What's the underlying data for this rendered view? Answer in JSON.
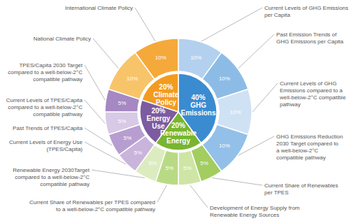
{
  "chart_data": {
    "type": "pie",
    "data_labels": true,
    "rings": [
      {
        "categories": [
          "GHG Emissions",
          "Renewable Energy",
          "Energy Use",
          "Climate Policy"
        ],
        "values": [
          40,
          20,
          20,
          20
        ],
        "value_labels": [
          "40%",
          "20%",
          "20%",
          "20%"
        ],
        "colors": [
          "#3b8bd0",
          "#79b530",
          "#7d5ba0",
          "#f29c1f"
        ]
      },
      {
        "categories": [
          "Current Levels of GHG Emissions per Capita",
          "Past Emission Trends of GHG Emissions per Capita",
          "Current Levels of GHG Emissions compared to a well-below-2°C compatible pathway",
          "GHG Emissions Reduction 2030 Target compared to a well-below-2°C compatible pathway",
          "Current Share of Renewables per TPES",
          "Development of Energy Supply from Renewable Energy Sources",
          "Current Share of Renewables per TPES compared to a well-below-2°C compatible pathway",
          "Renewable Energy 2030Target compared to a well-below-2°C compatible pathway",
          "Current Levels of Energy Use (TPES/Capita)",
          "Past Trends of TPES/Capita",
          "Current Levels of TPES/Capita compared to a well-below-2°C compatible pathway",
          "TPES/Capita 2030 Target compared to a well-below-2°C compatible pathway",
          "National Climate Policy",
          "International Climate Policy"
        ],
        "values": [
          10,
          10,
          10,
          10,
          5,
          5,
          5,
          5,
          5,
          5,
          5,
          5,
          10,
          10
        ],
        "value_labels": [
          "10%",
          "10%",
          "10%",
          "10%",
          "5%",
          "5%",
          "5%",
          "5%",
          "5%",
          "5%",
          "5%",
          "5%",
          "10%",
          "10%"
        ],
        "colors": [
          "#b3d1ee",
          "#8cbce6",
          "#cfe2f4",
          "#93c0e8",
          "#a3cd5f",
          "#cfe5a5",
          "#b9da85",
          "#dcecbf",
          "#c9b4dc",
          "#b79ed0",
          "#d8c9e6",
          "#a688c2",
          "#f8c46a",
          "#f5a93a"
        ]
      }
    ]
  }
}
